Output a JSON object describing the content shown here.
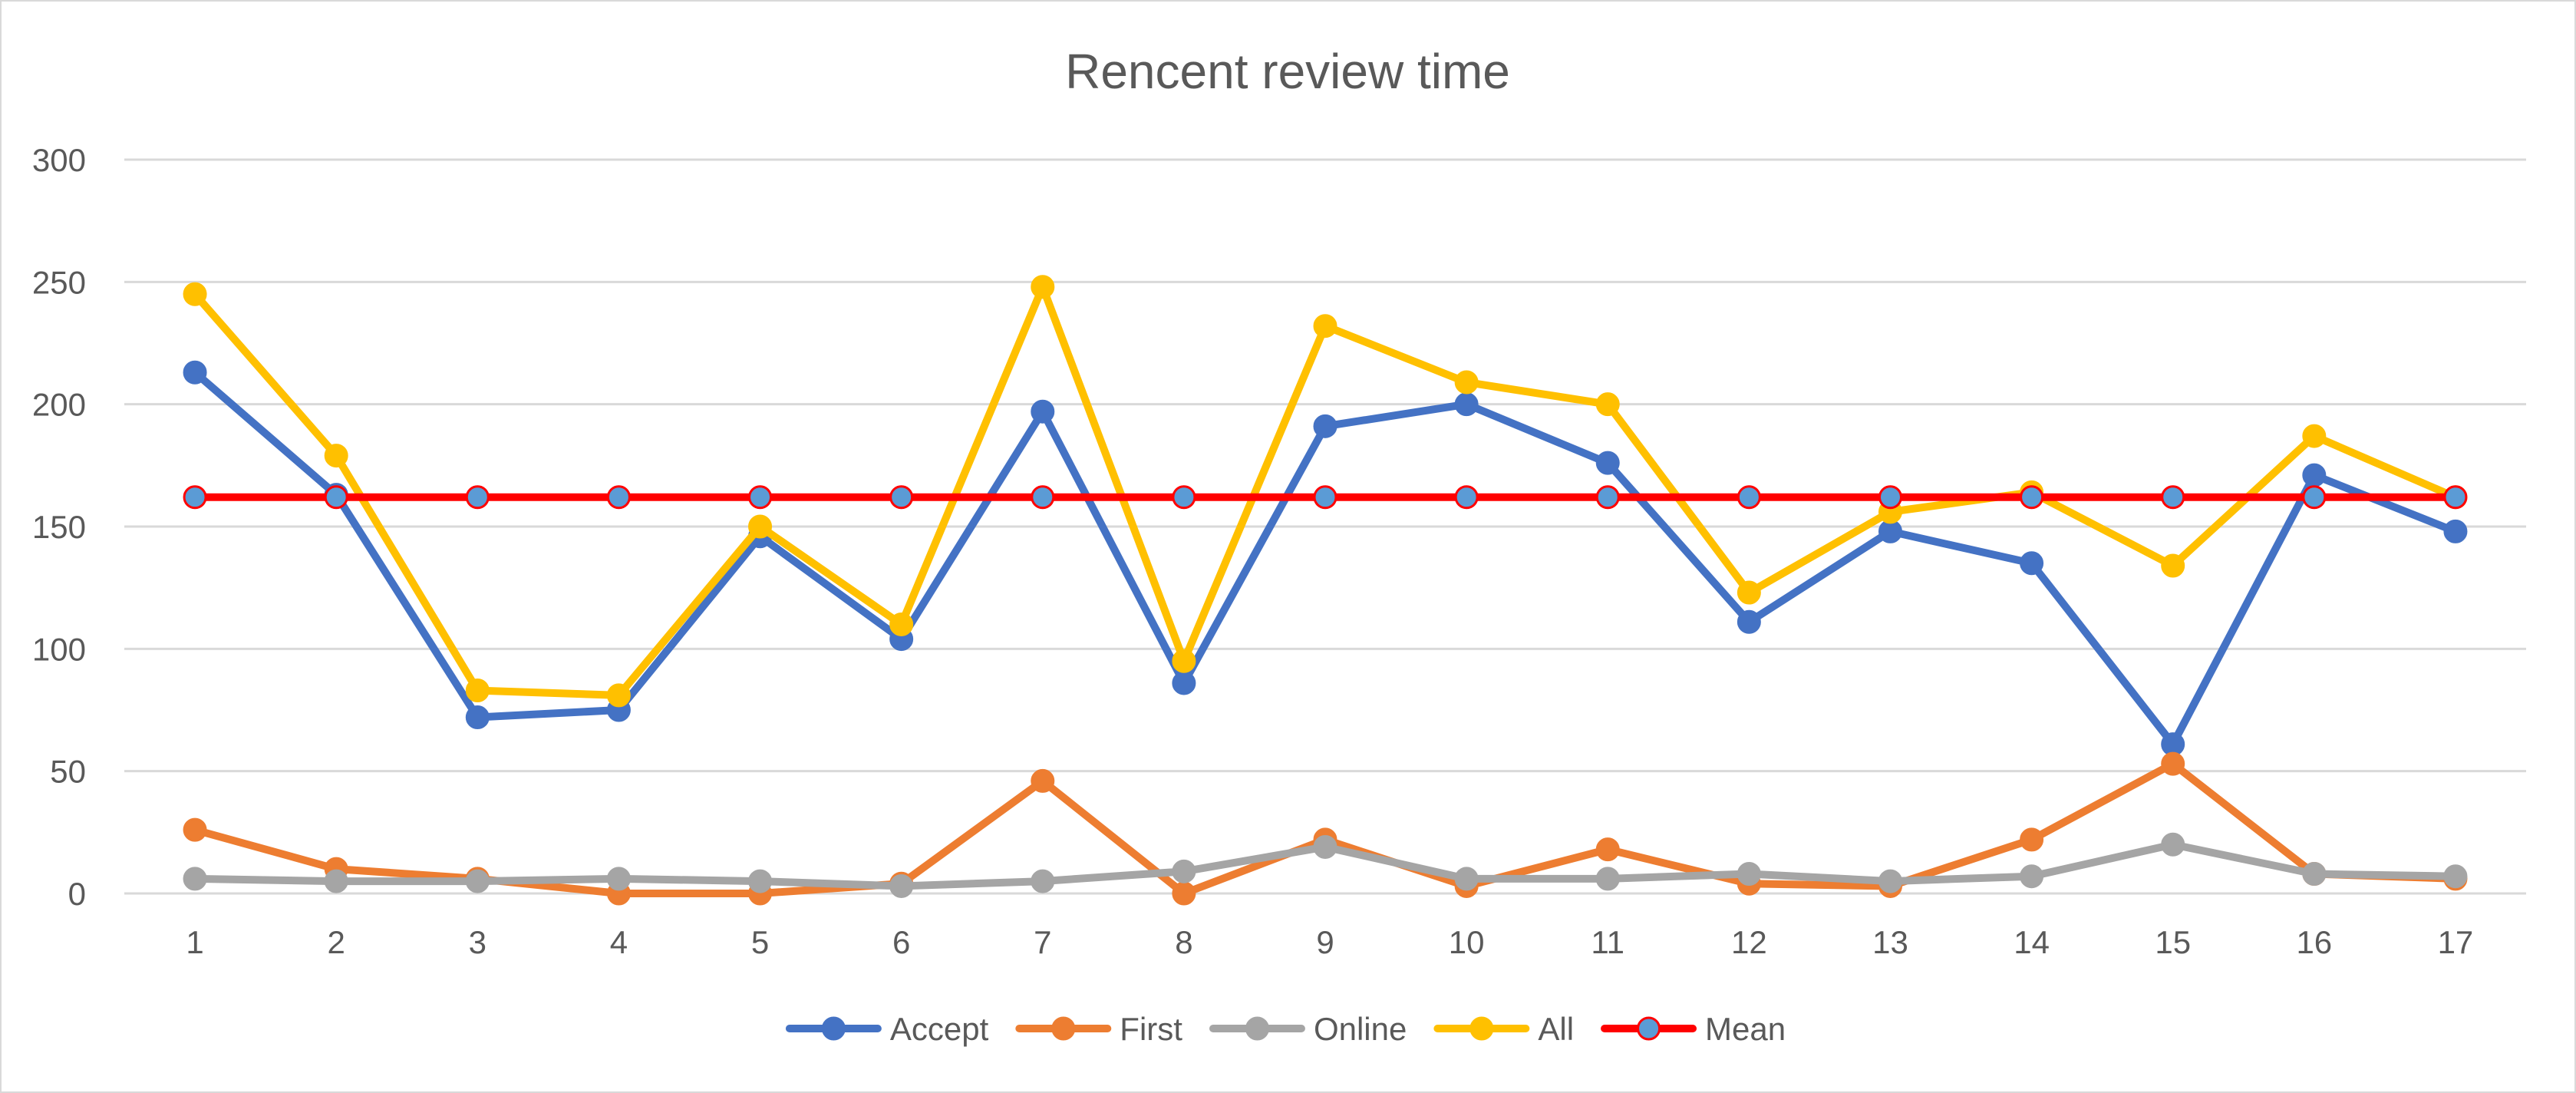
{
  "chart_data": {
    "type": "line",
    "title": "Rencent review time",
    "xlabel": "",
    "ylabel": "",
    "ylim": [
      0,
      300
    ],
    "yticks": [
      0,
      50,
      100,
      150,
      200,
      250,
      300
    ],
    "grid": true,
    "legend_position": "bottom",
    "categories": [
      "1",
      "2",
      "3",
      "4",
      "5",
      "6",
      "7",
      "8",
      "9",
      "10",
      "11",
      "12",
      "13",
      "14",
      "15",
      "16",
      "17"
    ],
    "series": [
      {
        "name": "Accept",
        "color": "#4472c4",
        "marker_fill": "#4472c4",
        "marker_stroke": "#4472c4",
        "values": [
          213,
          163,
          72,
          75,
          146,
          104,
          197,
          86,
          191,
          200,
          176,
          111,
          148,
          135,
          61,
          171,
          148
        ]
      },
      {
        "name": "First",
        "color": "#ed7d31",
        "marker_fill": "#ed7d31",
        "marker_stroke": "#ed7d31",
        "values": [
          26,
          10,
          6,
          0,
          0,
          4,
          46,
          0,
          22,
          3,
          18,
          4,
          3,
          22,
          53,
          8,
          6
        ]
      },
      {
        "name": "Online",
        "color": "#a5a5a5",
        "marker_fill": "#a5a5a5",
        "marker_stroke": "#a5a5a5",
        "values": [
          6,
          5,
          5,
          6,
          5,
          3,
          5,
          9,
          19,
          6,
          6,
          8,
          5,
          7,
          20,
          8,
          7
        ]
      },
      {
        "name": "All",
        "color": "#ffc000",
        "marker_fill": "#ffc000",
        "marker_stroke": "#ffc000",
        "values": [
          245,
          179,
          83,
          81,
          150,
          110,
          248,
          95,
          232,
          209,
          200,
          123,
          156,
          164,
          134,
          187,
          162
        ]
      },
      {
        "name": "Mean",
        "color": "#ff0000",
        "marker_fill": "#5b9bd5",
        "marker_stroke": "#ff0000",
        "values": [
          162,
          162,
          162,
          162,
          162,
          162,
          162,
          162,
          162,
          162,
          162,
          162,
          162,
          162,
          162,
          162,
          162
        ]
      }
    ]
  }
}
